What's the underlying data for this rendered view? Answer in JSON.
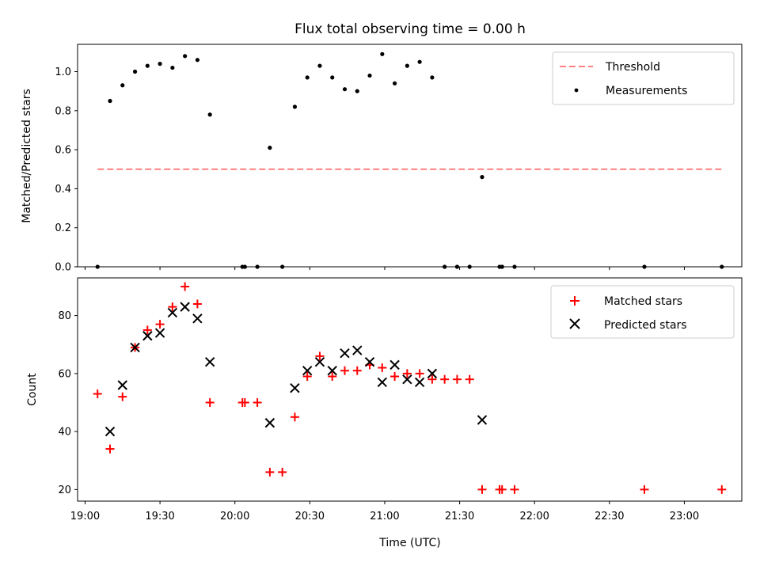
{
  "chart_data": [
    {
      "type": "scatter",
      "title": "Flux total observing time = 0.00 h",
      "xlabel": "",
      "ylabel": "Matched/Predicted stars",
      "ylim": [
        0,
        1.14
      ],
      "yticks": [
        "0.0",
        "0.2",
        "0.4",
        "0.6",
        "0.8",
        "1.0"
      ],
      "legend_position": "top-right",
      "threshold": {
        "name": "Threshold",
        "value": 0.5,
        "color": "#ff7f7f",
        "style": "dashed",
        "x_start": "19:05",
        "x_end": "23:15"
      },
      "series": [
        {
          "name": "Measurements",
          "marker": "dot",
          "color": "#000000",
          "points": [
            [
              "19:05",
              0.0
            ],
            [
              "19:10",
              0.85
            ],
            [
              "19:15",
              0.93
            ],
            [
              "19:20",
              1.0
            ],
            [
              "19:25",
              1.03
            ],
            [
              "19:30",
              1.04
            ],
            [
              "19:35",
              1.02
            ],
            [
              "19:40",
              1.08
            ],
            [
              "19:45",
              1.06
            ],
            [
              "19:50",
              0.78
            ],
            [
              "20:03",
              0.0
            ],
            [
              "20:04",
              0.0
            ],
            [
              "20:09",
              0.0
            ],
            [
              "20:14",
              0.61
            ],
            [
              "20:19",
              0.0
            ],
            [
              "20:24",
              0.82
            ],
            [
              "20:29",
              0.97
            ],
            [
              "20:34",
              1.03
            ],
            [
              "20:39",
              0.97
            ],
            [
              "20:44",
              0.91
            ],
            [
              "20:49",
              0.9
            ],
            [
              "20:54",
              0.98
            ],
            [
              "20:59",
              1.09
            ],
            [
              "21:04",
              0.94
            ],
            [
              "21:09",
              1.03
            ],
            [
              "21:14",
              1.05
            ],
            [
              "21:19",
              0.97
            ],
            [
              "21:24",
              0.0
            ],
            [
              "21:29",
              0.0
            ],
            [
              "21:34",
              0.0
            ],
            [
              "21:39",
              0.46
            ],
            [
              "21:46",
              0.0
            ],
            [
              "21:47",
              0.0
            ],
            [
              "21:52",
              0.0
            ],
            [
              "22:44",
              0.0
            ],
            [
              "23:15",
              0.0
            ]
          ]
        }
      ]
    },
    {
      "type": "scatter",
      "title": "",
      "xlabel": "Time (UTC)",
      "ylabel": "Count",
      "ylim": [
        16,
        93
      ],
      "yticks": [
        "20",
        "40",
        "60",
        "80"
      ],
      "xlim": [
        "18:57",
        "23:23"
      ],
      "xticks": [
        "19:00",
        "19:30",
        "20:00",
        "20:30",
        "21:00",
        "21:30",
        "22:00",
        "22:30",
        "23:00"
      ],
      "legend_position": "top-right",
      "series": [
        {
          "name": "Matched stars",
          "marker": "plus",
          "color": "#ff0000",
          "points": [
            [
              "19:05",
              53
            ],
            [
              "19:10",
              34
            ],
            [
              "19:15",
              52
            ],
            [
              "19:20",
              69
            ],
            [
              "19:25",
              75
            ],
            [
              "19:30",
              77
            ],
            [
              "19:35",
              83
            ],
            [
              "19:40",
              90
            ],
            [
              "19:45",
              84
            ],
            [
              "19:50",
              50
            ],
            [
              "20:03",
              50
            ],
            [
              "20:04",
              50
            ],
            [
              "20:09",
              50
            ],
            [
              "20:14",
              26
            ],
            [
              "20:19",
              26
            ],
            [
              "20:24",
              45
            ],
            [
              "20:29",
              59
            ],
            [
              "20:34",
              66
            ],
            [
              "20:39",
              59
            ],
            [
              "20:44",
              61
            ],
            [
              "20:49",
              61
            ],
            [
              "20:54",
              63
            ],
            [
              "20:59",
              62
            ],
            [
              "21:04",
              59
            ],
            [
              "21:09",
              60
            ],
            [
              "21:14",
              60
            ],
            [
              "21:19",
              58
            ],
            [
              "21:24",
              58
            ],
            [
              "21:29",
              58
            ],
            [
              "21:34",
              58
            ],
            [
              "21:39",
              20
            ],
            [
              "21:46",
              20
            ],
            [
              "21:47",
              20
            ],
            [
              "21:52",
              20
            ],
            [
              "22:44",
              20
            ],
            [
              "23:15",
              20
            ]
          ]
        },
        {
          "name": "Predicted stars",
          "marker": "x",
          "color": "#000000",
          "points": [
            [
              "19:10",
              40
            ],
            [
              "19:15",
              56
            ],
            [
              "19:20",
              69
            ],
            [
              "19:25",
              73
            ],
            [
              "19:30",
              74
            ],
            [
              "19:35",
              81
            ],
            [
              "19:40",
              83
            ],
            [
              "19:45",
              79
            ],
            [
              "19:50",
              64
            ],
            [
              "20:14",
              43
            ],
            [
              "20:24",
              55
            ],
            [
              "20:29",
              61
            ],
            [
              "20:34",
              64
            ],
            [
              "20:39",
              61
            ],
            [
              "20:44",
              67
            ],
            [
              "20:49",
              68
            ],
            [
              "20:54",
              64
            ],
            [
              "20:59",
              57
            ],
            [
              "21:04",
              63
            ],
            [
              "21:09",
              58
            ],
            [
              "21:14",
              57
            ],
            [
              "21:19",
              60
            ],
            [
              "21:39",
              44
            ]
          ]
        }
      ]
    }
  ]
}
